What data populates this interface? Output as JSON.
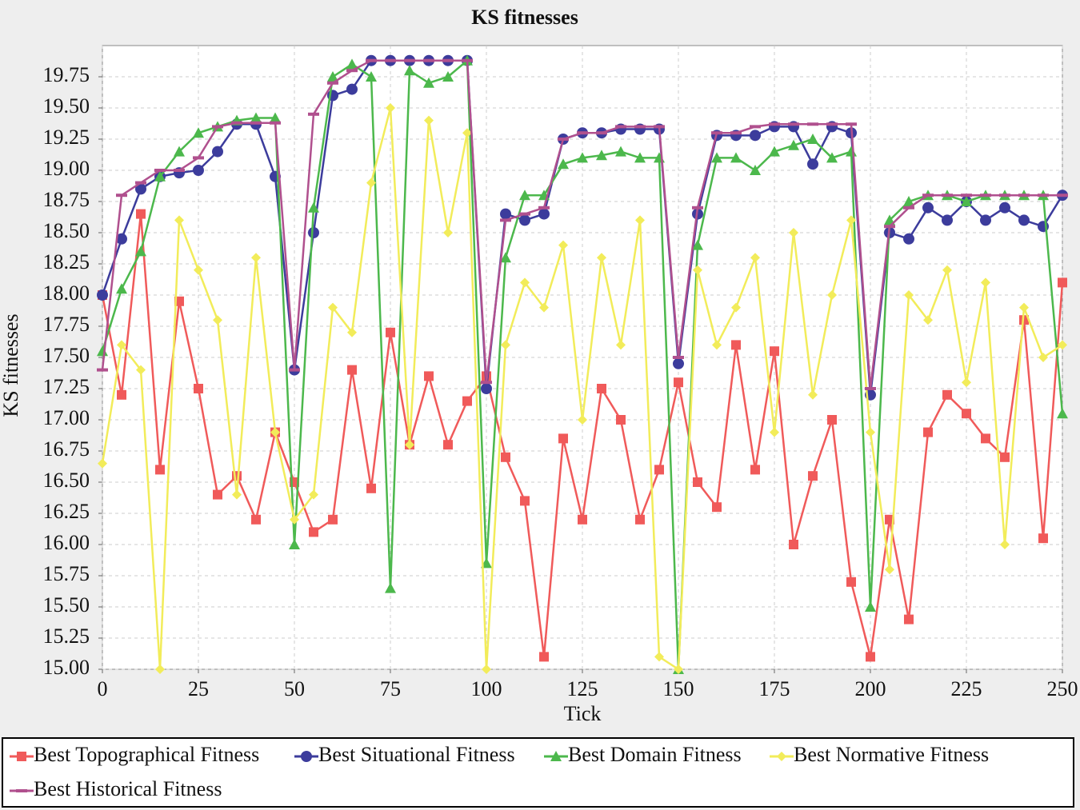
{
  "chart_data": {
    "type": "line",
    "title": "KS fitnesses",
    "x_label": "Tick",
    "y_label": "KS fitnesses",
    "x": [
      0,
      5,
      10,
      15,
      20,
      25,
      30,
      35,
      40,
      45,
      50,
      55,
      60,
      65,
      70,
      75,
      80,
      85,
      90,
      95,
      100,
      105,
      110,
      115,
      120,
      125,
      130,
      135,
      140,
      145,
      150,
      155,
      160,
      165,
      170,
      175,
      180,
      185,
      190,
      195,
      200,
      205,
      210,
      215,
      220,
      225,
      230,
      235,
      240,
      245,
      250
    ],
    "xlim": [
      0,
      250
    ],
    "xticks": [
      0,
      25,
      50,
      75,
      100,
      125,
      150,
      175,
      200,
      225,
      250
    ],
    "ylim": [
      15,
      20
    ],
    "yticks": [
      {
        "value": 15,
        "label": "15.00"
      },
      15.25,
      {
        "value": 15.5,
        "label": "15.50"
      },
      15.75,
      {
        "value": 16,
        "label": "16.00"
      },
      16.25,
      {
        "value": 16.5,
        "label": "16.50"
      },
      16.75,
      {
        "value": 17,
        "label": "17.00"
      },
      17.25,
      {
        "value": 17.5,
        "label": "17.50"
      },
      17.75,
      {
        "value": 18,
        "label": "18.00"
      },
      18.25,
      {
        "value": 18.5,
        "label": "18.50"
      },
      18.75,
      {
        "value": 19,
        "label": "19.00"
      },
      19.25,
      {
        "value": 19.5,
        "label": "19.50"
      },
      19.75
    ],
    "grid": true,
    "series": [
      {
        "name": "Best Topographical Fitness",
        "color": "#f05a5a",
        "marker": "square",
        "values": [
          18.0,
          17.2,
          18.65,
          16.6,
          17.95,
          17.25,
          16.4,
          16.55,
          16.2,
          16.9,
          16.5,
          16.1,
          16.2,
          17.4,
          16.45,
          17.7,
          16.8,
          17.35,
          16.8,
          17.15,
          17.35,
          16.7,
          16.35,
          15.1,
          16.85,
          16.2,
          17.25,
          17.0,
          16.2,
          16.6,
          17.3,
          16.5,
          16.3,
          17.6,
          16.6,
          17.55,
          16.0,
          16.55,
          17.0,
          15.7,
          15.1,
          16.2,
          15.4,
          16.9,
          17.2,
          17.05,
          16.85,
          16.7,
          17.8,
          16.05,
          18.1
        ]
      },
      {
        "name": "Best Situational Fitness",
        "color": "#3c3c9c",
        "marker": "circle",
        "values": [
          18.0,
          18.45,
          18.85,
          18.95,
          18.98,
          19.0,
          19.15,
          19.37,
          19.37,
          18.95,
          17.4,
          18.5,
          19.6,
          19.65,
          19.88,
          19.88,
          19.88,
          19.88,
          19.88,
          19.88,
          17.25,
          18.65,
          18.6,
          18.65,
          19.25,
          19.3,
          19.3,
          19.33,
          19.33,
          19.33,
          17.45,
          18.65,
          19.28,
          19.28,
          19.28,
          19.35,
          19.35,
          19.05,
          19.35,
          19.3,
          17.2,
          18.5,
          18.45,
          18.7,
          18.6,
          18.75,
          18.6,
          18.7,
          18.6,
          18.55,
          18.8
        ]
      },
      {
        "name": "Best Domain Fitness",
        "color": "#4cb84c",
        "marker": "triangle",
        "values": [
          17.55,
          18.05,
          18.35,
          18.95,
          19.15,
          19.3,
          19.35,
          19.4,
          19.42,
          19.42,
          16.0,
          18.7,
          19.75,
          19.85,
          19.75,
          15.65,
          19.8,
          19.7,
          19.75,
          19.88,
          15.85,
          18.3,
          18.8,
          18.8,
          19.05,
          19.1,
          19.12,
          19.15,
          19.1,
          19.1,
          15.0,
          18.4,
          19.1,
          19.1,
          19.0,
          19.15,
          19.2,
          19.25,
          19.1,
          19.15,
          15.5,
          18.6,
          18.75,
          18.8,
          18.8,
          18.75,
          18.8,
          18.8,
          18.8,
          18.8,
          17.05
        ]
      },
      {
        "name": "Best Normative Fitness",
        "color": "#f2ec5a",
        "marker": "diamond",
        "values": [
          16.65,
          17.6,
          17.4,
          15.0,
          18.6,
          18.2,
          17.8,
          16.4,
          18.3,
          16.9,
          16.2,
          16.4,
          17.9,
          17.7,
          18.9,
          19.5,
          16.8,
          19.4,
          18.5,
          19.3,
          15.0,
          17.6,
          18.1,
          17.9,
          18.4,
          17.0,
          18.3,
          17.6,
          18.6,
          15.1,
          15.0,
          18.2,
          17.6,
          17.9,
          18.3,
          16.9,
          18.5,
          17.2,
          18.0,
          18.6,
          16.9,
          15.8,
          18.0,
          17.8,
          18.2,
          17.3,
          18.1,
          16.0,
          17.9,
          17.5,
          17.6
        ]
      },
      {
        "name": "Best Historical Fitness",
        "color": "#b0508e",
        "marker": "dash",
        "values": [
          17.4,
          18.8,
          18.9,
          19.0,
          19.0,
          19.1,
          19.35,
          19.38,
          19.38,
          19.38,
          17.4,
          19.45,
          19.7,
          19.8,
          19.88,
          19.88,
          19.88,
          19.88,
          19.88,
          19.88,
          17.3,
          18.6,
          18.65,
          18.7,
          19.25,
          19.3,
          19.3,
          19.35,
          19.35,
          19.35,
          17.5,
          18.7,
          19.3,
          19.3,
          19.35,
          19.37,
          19.37,
          19.37,
          19.37,
          19.37,
          17.25,
          18.55,
          18.7,
          18.8,
          18.8,
          18.8,
          18.8,
          18.8,
          18.8,
          18.8,
          18.8
        ]
      }
    ]
  }
}
